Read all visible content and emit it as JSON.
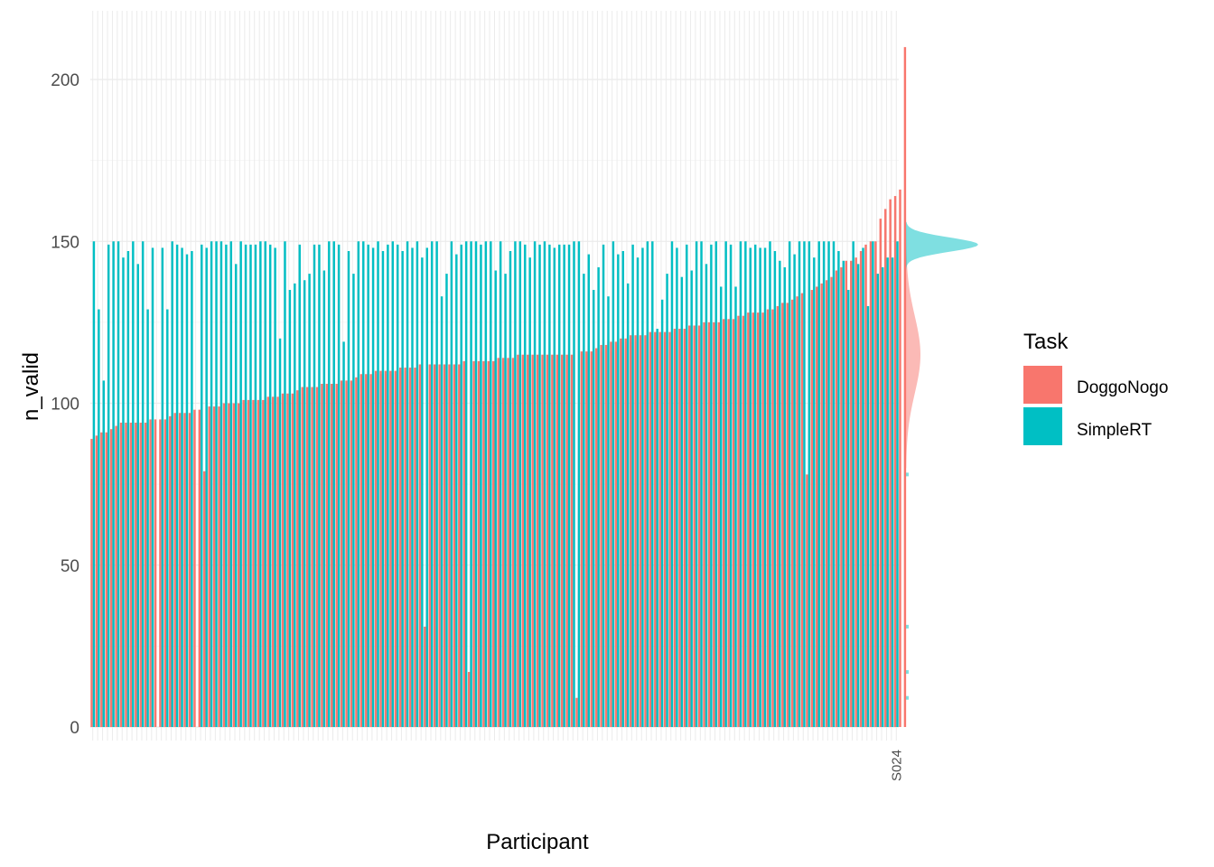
{
  "chart_data": {
    "type": "bar",
    "title": "",
    "xlabel": "Participant",
    "ylabel": "n_valid",
    "ylim": [
      0,
      220
    ],
    "y_ticks": [
      0,
      50,
      100,
      150,
      200
    ],
    "grid": true,
    "legend": {
      "title": "Task",
      "placement": "right",
      "entries": [
        {
          "name": "DoggoNogo",
          "color": "#F8766D"
        },
        {
          "name": "SimpleRT",
          "color": "#00BFC4"
        }
      ]
    },
    "participant_count": 165,
    "last_participant_label": "S024",
    "series": [
      {
        "name": "DoggoNogo",
        "color": "#F8766D",
        "values": [
          89,
          90,
          91,
          91,
          92,
          93,
          94,
          94,
          94,
          94,
          94,
          94,
          95,
          95,
          95,
          95,
          96,
          97,
          97,
          97,
          97,
          98,
          98,
          79,
          99,
          99,
          99,
          100,
          100,
          100,
          100,
          101,
          101,
          101,
          101,
          101,
          102,
          102,
          102,
          103,
          103,
          103,
          104,
          105,
          105,
          105,
          105,
          106,
          106,
          106,
          106,
          107,
          107,
          107,
          108,
          109,
          109,
          109,
          110,
          110,
          110,
          110,
          110,
          111,
          111,
          111,
          111,
          112,
          31,
          112,
          112,
          112,
          112,
          112,
          112,
          112,
          113,
          17,
          113,
          113,
          113,
          113,
          113,
          114,
          114,
          114,
          114,
          115,
          115,
          115,
          115,
          115,
          115,
          115,
          115,
          115,
          115,
          115,
          115,
          9,
          116,
          116,
          116,
          117,
          118,
          118,
          119,
          119,
          120,
          120,
          121,
          121,
          121,
          121,
          122,
          122,
          122,
          122,
          122,
          123,
          123,
          123,
          124,
          124,
          124,
          125,
          125,
          125,
          125,
          126,
          126,
          126,
          127,
          127,
          128,
          128,
          128,
          128,
          129,
          129,
          130,
          131,
          131,
          132,
          133,
          134,
          78,
          135,
          136,
          137,
          138,
          139,
          141,
          142,
          144,
          144,
          145,
          147,
          149,
          150,
          150,
          157,
          160,
          163,
          164,
          166,
          210
        ]
      },
      {
        "name": "SimpleRT",
        "color": "#00BFC4",
        "values": [
          150,
          129,
          107,
          149,
          150,
          150,
          145,
          147,
          150,
          143,
          150,
          129,
          148,
          0,
          148,
          129,
          150,
          149,
          148,
          146,
          147,
          null,
          149,
          148,
          150,
          150,
          150,
          149,
          150,
          143,
          150,
          149,
          149,
          149,
          150,
          150,
          149,
          148,
          120,
          150,
          135,
          137,
          149,
          138,
          140,
          149,
          149,
          141,
          150,
          150,
          149,
          119,
          147,
          140,
          150,
          150,
          149,
          148,
          150,
          147,
          149,
          150,
          149,
          147,
          150,
          148,
          150,
          145,
          148,
          150,
          150,
          133,
          140,
          150,
          146,
          149,
          150,
          150,
          150,
          149,
          150,
          150,
          141,
          150,
          140,
          147,
          150,
          150,
          149,
          145,
          150,
          149,
          150,
          149,
          148,
          149,
          149,
          149,
          150,
          150,
          140,
          146,
          135,
          142,
          149,
          133,
          150,
          146,
          147,
          137,
          149,
          145,
          148,
          150,
          150,
          123,
          132,
          140,
          150,
          148,
          139,
          149,
          141,
          150,
          150,
          143,
          149,
          150,
          136,
          150,
          149,
          136,
          150,
          150,
          148,
          149,
          148,
          148,
          150,
          147,
          144,
          142,
          150,
          146,
          150,
          150,
          150,
          145,
          150,
          150,
          150,
          150,
          147,
          144,
          135,
          150,
          143,
          148,
          130,
          150,
          140,
          142,
          145,
          145,
          150
        ]
      }
    ],
    "density_panel": {
      "series": [
        {
          "name": "SimpleRT",
          "color": "#00BFC4",
          "peak_at": 149
        },
        {
          "name": "DoggoNogo",
          "color": "#F8766D",
          "peak_at": 115
        }
      ]
    }
  }
}
